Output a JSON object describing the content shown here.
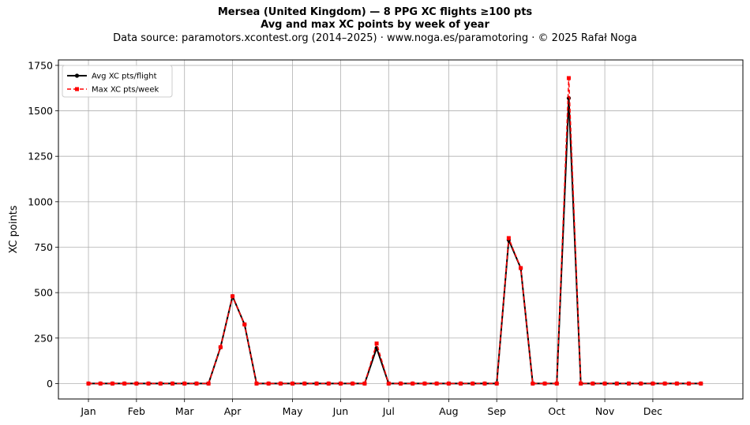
{
  "chart_data": {
    "type": "line",
    "title": "Mersea (United Kingdom)  —  8 PPG XC flights ≥100 pts",
    "subtitle": "Avg and max XC points by week of year",
    "source": "Data source: paramotors.xcontest.org (2014–2025)  ·  www.noga.es/paramotoring  ·  © 2025 Rafał Noga",
    "ylabel": "XC points",
    "xlim": [
      -2.5,
      54.5
    ],
    "ylim": [
      -85,
      1780
    ],
    "yticks": [
      0,
      250,
      500,
      750,
      1000,
      1250,
      1500,
      1750
    ],
    "xticks": [
      {
        "label": "Jan",
        "week": 0
      },
      {
        "label": "Feb",
        "week": 4
      },
      {
        "label": "Mar",
        "week": 8
      },
      {
        "label": "Apr",
        "week": 12
      },
      {
        "label": "May",
        "week": 17
      },
      {
        "label": "Jun",
        "week": 21
      },
      {
        "label": "Jul",
        "week": 25
      },
      {
        "label": "Aug",
        "week": 30
      },
      {
        "label": "Sep",
        "week": 34
      },
      {
        "label": "Oct",
        "week": 39
      },
      {
        "label": "Nov",
        "week": 43
      },
      {
        "label": "Dec",
        "week": 47
      }
    ],
    "grid": true,
    "legend_position": "top-left",
    "x": [
      0,
      1,
      2,
      3,
      4,
      5,
      6,
      7,
      8,
      9,
      10,
      11,
      12,
      13,
      14,
      15,
      16,
      17,
      18,
      19,
      20,
      21,
      22,
      23,
      24,
      25,
      26,
      27,
      28,
      29,
      30,
      31,
      32,
      33,
      34,
      35,
      36,
      37,
      38,
      39,
      40,
      41,
      42,
      43,
      44,
      45,
      46,
      47,
      48,
      49,
      50,
      51
    ],
    "series": [
      {
        "name": "Avg XC pts/flight",
        "color": "#000000",
        "style": "solid",
        "marker": "circle",
        "values": [
          0,
          0,
          0,
          0,
          0,
          0,
          0,
          0,
          0,
          0,
          0,
          200,
          480,
          325,
          0,
          0,
          0,
          0,
          0,
          0,
          0,
          0,
          0,
          0,
          195,
          0,
          0,
          0,
          0,
          0,
          0,
          0,
          0,
          0,
          0,
          790,
          635,
          0,
          0,
          0,
          1570,
          0,
          0,
          0,
          0,
          0,
          0,
          0,
          0,
          0,
          0,
          0
        ]
      },
      {
        "name": "Max XC pts/week",
        "color": "#ff0000",
        "style": "dashed",
        "marker": "square",
        "values": [
          0,
          0,
          0,
          0,
          0,
          0,
          0,
          0,
          0,
          0,
          0,
          200,
          480,
          325,
          0,
          0,
          0,
          0,
          0,
          0,
          0,
          0,
          0,
          0,
          220,
          0,
          0,
          0,
          0,
          0,
          0,
          0,
          0,
          0,
          0,
          800,
          635,
          0,
          0,
          0,
          1680,
          0,
          0,
          0,
          0,
          0,
          0,
          0,
          0,
          0,
          0,
          0
        ]
      }
    ]
  }
}
